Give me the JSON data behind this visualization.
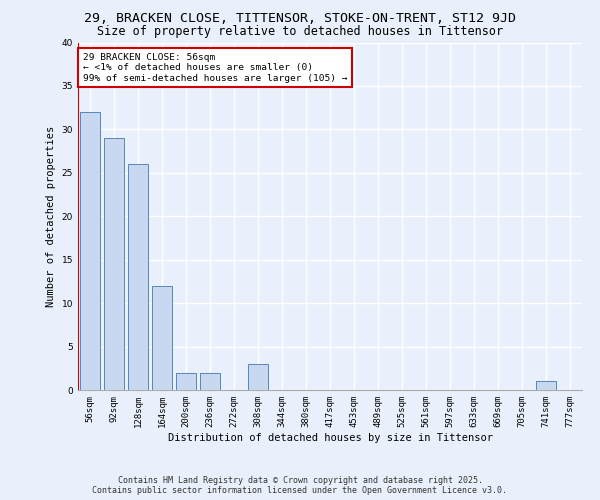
{
  "title1": "29, BRACKEN CLOSE, TITTENSOR, STOKE-ON-TRENT, ST12 9JD",
  "title2": "Size of property relative to detached houses in Tittensor",
  "xlabel": "Distribution of detached houses by size in Tittensor",
  "ylabel": "Number of detached properties",
  "categories": [
    "56sqm",
    "92sqm",
    "128sqm",
    "164sqm",
    "200sqm",
    "236sqm",
    "272sqm",
    "308sqm",
    "344sqm",
    "380sqm",
    "417sqm",
    "453sqm",
    "489sqm",
    "525sqm",
    "561sqm",
    "597sqm",
    "633sqm",
    "669sqm",
    "705sqm",
    "741sqm",
    "777sqm"
  ],
  "values": [
    32,
    29,
    26,
    12,
    2,
    2,
    0,
    3,
    0,
    0,
    0,
    0,
    0,
    0,
    0,
    0,
    0,
    0,
    0,
    1,
    0
  ],
  "bar_color": "#c8d8f0",
  "bar_edge_color": "#5588bb",
  "background_color": "#eaf0fb",
  "grid_color": "#ffffff",
  "annotation_box_text": "29 BRACKEN CLOSE: 56sqm\n← <1% of detached houses are smaller (0)\n99% of semi-detached houses are larger (105) →",
  "annotation_box_color": "#ffffff",
  "annotation_box_edge_color": "#cc0000",
  "ylim": [
    0,
    40
  ],
  "yticks": [
    0,
    5,
    10,
    15,
    20,
    25,
    30,
    35,
    40
  ],
  "footer1": "Contains HM Land Registry data © Crown copyright and database right 2025.",
  "footer2": "Contains public sector information licensed under the Open Government Licence v3.0.",
  "title1_fontsize": 9.5,
  "title2_fontsize": 8.5,
  "xlabel_fontsize": 7.5,
  "ylabel_fontsize": 7.5,
  "tick_fontsize": 6.5,
  "annotation_fontsize": 6.8,
  "footer_fontsize": 6.0
}
